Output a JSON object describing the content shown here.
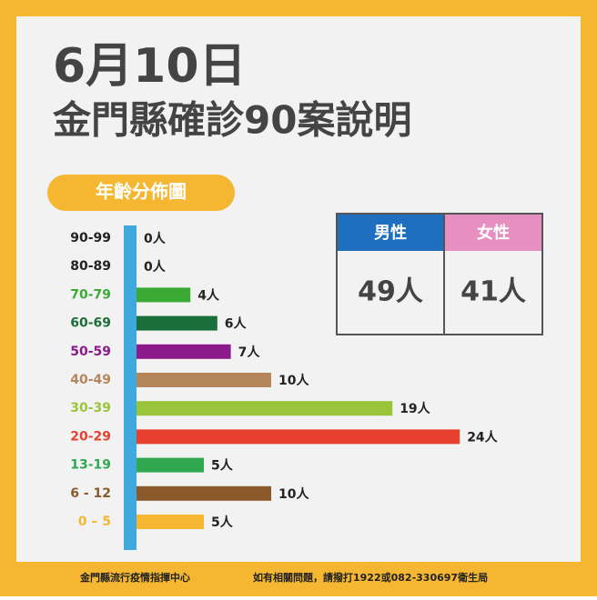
{
  "chart_data": {
    "type": "bar",
    "orientation": "horizontal",
    "title": "6月10日",
    "subtitle": "金門縣確診90案說明",
    "badge": "年齡分佈圖",
    "categories": [
      "90-99",
      "80-89",
      "70-79",
      "60-69",
      "50-59",
      "40-49",
      "30-39",
      "20-29",
      "13-19",
      "6 - 12",
      "0 – 5"
    ],
    "values": [
      0,
      0,
      4,
      6,
      7,
      10,
      19,
      24,
      5,
      10,
      5
    ],
    "value_labels": [
      "0人",
      "0人",
      "4人",
      "6人",
      "7人",
      "10人",
      "19人",
      "24人",
      "5人",
      "10人",
      "5人"
    ],
    "colors": [
      "#222222",
      "#222222",
      "#3aaa35",
      "#1a6e3a",
      "#8b1a8b",
      "#b5865a",
      "#9ac53b",
      "#e8402f",
      "#2fa84f",
      "#8b5a2b",
      "#f5b731"
    ],
    "xlim": [
      0,
      30
    ]
  },
  "gender": {
    "male": {
      "label": "男性",
      "value": 49,
      "value_label": "49人"
    },
    "female": {
      "label": "女性",
      "value": 41,
      "value_label": "41人"
    }
  },
  "footer": {
    "left": "金門縣流行疫情指揮中心",
    "right": "如有相關問題，請撥打1922或082-330697衛生局"
  }
}
